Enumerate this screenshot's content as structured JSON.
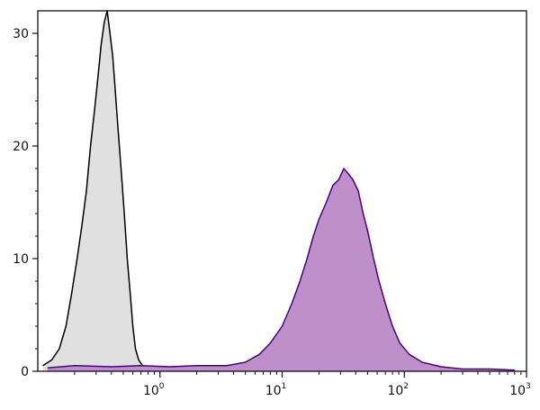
{
  "chart_data": {
    "type": "area",
    "title": "",
    "xlabel": "",
    "ylabel": "",
    "x_scale": "log",
    "xlim": [
      0.1,
      1000
    ],
    "ylim": [
      0,
      32
    ],
    "grid": false,
    "x_ticks": [
      {
        "value": 1,
        "base": "10",
        "exp": "0"
      },
      {
        "value": 10,
        "base": "10",
        "exp": "1"
      },
      {
        "value": 100,
        "base": "10",
        "exp": "2"
      },
      {
        "value": 1000,
        "base": "10",
        "exp": "3"
      }
    ],
    "y_ticks": [
      {
        "value": 0,
        "label": "0"
      },
      {
        "value": 10,
        "label": "10"
      },
      {
        "value": 20,
        "label": "20"
      },
      {
        "value": 30,
        "label": "30"
      }
    ],
    "series": [
      {
        "fill": "#e0e0e0",
        "stroke": "#000000",
        "x": [
          0.11,
          0.13,
          0.15,
          0.17,
          0.19,
          0.21,
          0.23,
          0.25,
          0.27,
          0.29,
          0.31,
          0.33,
          0.35,
          0.37,
          0.39,
          0.41,
          0.43,
          0.45,
          0.48,
          0.51,
          0.54,
          0.57,
          0.6,
          0.63,
          0.67,
          0.72,
          0.8,
          0.9,
          1.0
        ],
        "y": [
          0.5,
          1.0,
          2.0,
          4.0,
          7.0,
          10.0,
          13.0,
          16.0,
          20.0,
          23.0,
          26.0,
          29.0,
          31.0,
          32.0,
          30.0,
          28.0,
          25.0,
          22.0,
          18.0,
          14.0,
          10.0,
          7.0,
          4.0,
          2.0,
          1.0,
          0.5,
          0.3,
          0.2,
          0.0
        ]
      },
      {
        "fill": "#bf8fc9",
        "stroke": "#4b0082",
        "x": [
          0.12,
          0.2,
          0.4,
          0.7,
          1.2,
          2.0,
          3.5,
          5.0,
          6.5,
          8.0,
          10.0,
          12.0,
          14.0,
          16.0,
          18.0,
          20.0,
          23.0,
          26.0,
          29.0,
          32.0,
          35.0,
          38.0,
          42.0,
          46.0,
          50.0,
          56.0,
          62.0,
          70.0,
          80.0,
          92.0,
          110.0,
          140.0,
          200.0,
          300.0,
          500.0,
          800.0
        ],
        "y": [
          0.3,
          0.5,
          0.4,
          0.5,
          0.4,
          0.5,
          0.5,
          0.8,
          1.5,
          2.5,
          4.0,
          6.0,
          8.0,
          10.0,
          12.0,
          13.5,
          15.0,
          16.5,
          17.0,
          18.0,
          17.5,
          17.0,
          16.0,
          14.0,
          12.5,
          10.0,
          8.0,
          6.0,
          4.0,
          2.5,
          1.5,
          0.8,
          0.4,
          0.2,
          0.2,
          0.1
        ]
      }
    ]
  }
}
